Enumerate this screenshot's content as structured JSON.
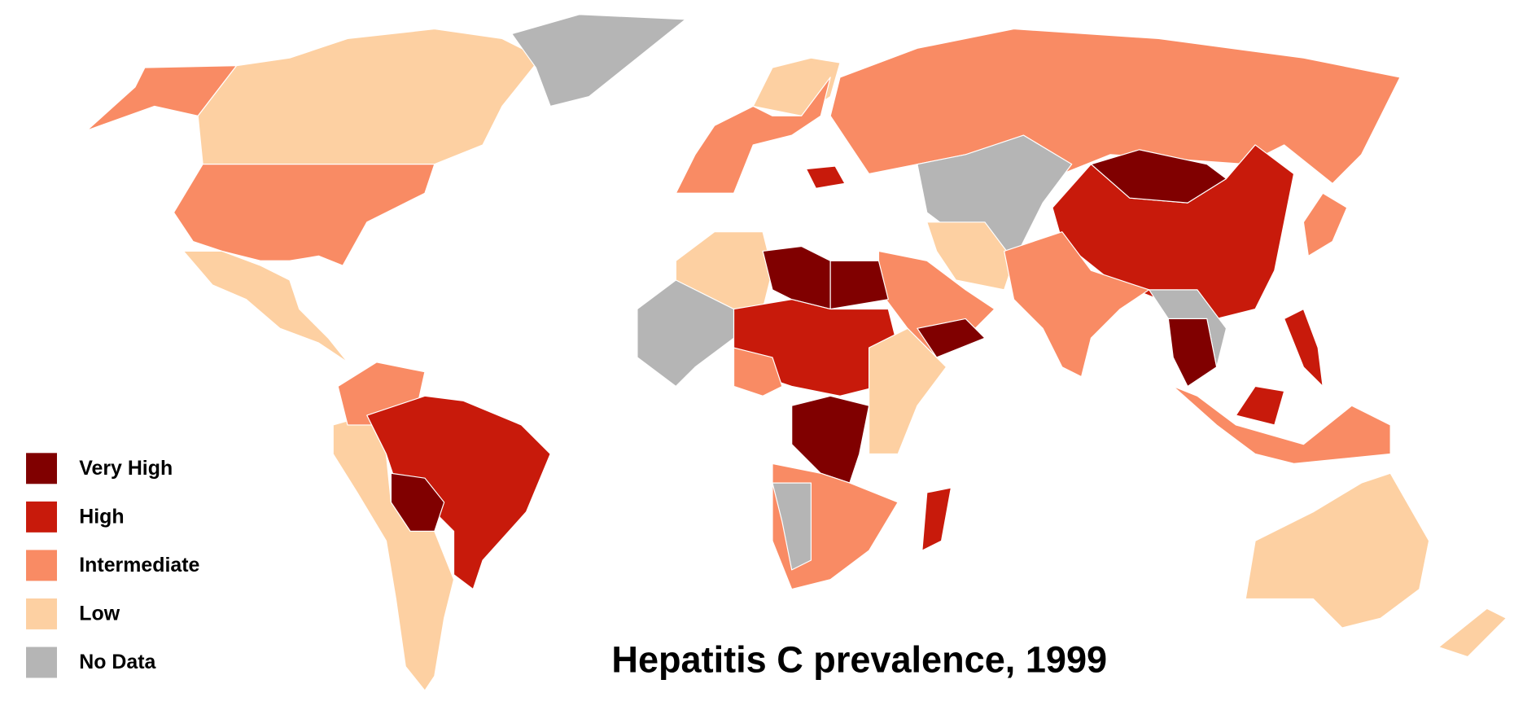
{
  "title": "Hepatitis C prevalence, 1999",
  "legend": [
    {
      "label": "Very High",
      "color": "#800000"
    },
    {
      "label": "High",
      "color": "#c81a0b"
    },
    {
      "label": "Intermediate",
      "color": "#f98b64"
    },
    {
      "label": "Low",
      "color": "#fdd0a2"
    },
    {
      "label": "No Data",
      "color": "#b5b5b5"
    }
  ]
}
